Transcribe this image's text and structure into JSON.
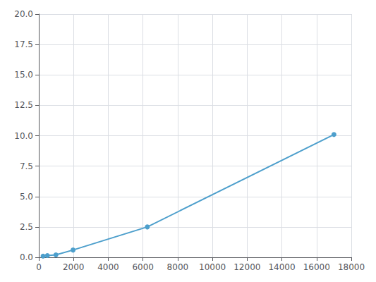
{
  "chart_data": {
    "type": "line",
    "x": [
      246,
      493,
      986,
      1973,
      6250,
      17000
    ],
    "values": [
      0.1,
      0.15,
      0.2,
      0.6,
      2.5,
      10.1
    ],
    "color": "#4d9fcc",
    "marker": "circle",
    "xlim": [
      0,
      18000
    ],
    "ylim": [
      0,
      20
    ],
    "xticks": [
      0,
      2000,
      4000,
      6000,
      8000,
      10000,
      12000,
      14000,
      16000,
      18000
    ],
    "yticks": [
      {
        "value": 0,
        "label": "0.0"
      },
      2.5,
      {
        "value": 5,
        "label": "5.0"
      },
      7.5,
      {
        "value": 10,
        "label": "10.0"
      },
      12.5,
      {
        "value": 15,
        "label": "15.0"
      },
      17.5,
      {
        "value": 20,
        "label": "20.0"
      }
    ],
    "grid": true
  }
}
